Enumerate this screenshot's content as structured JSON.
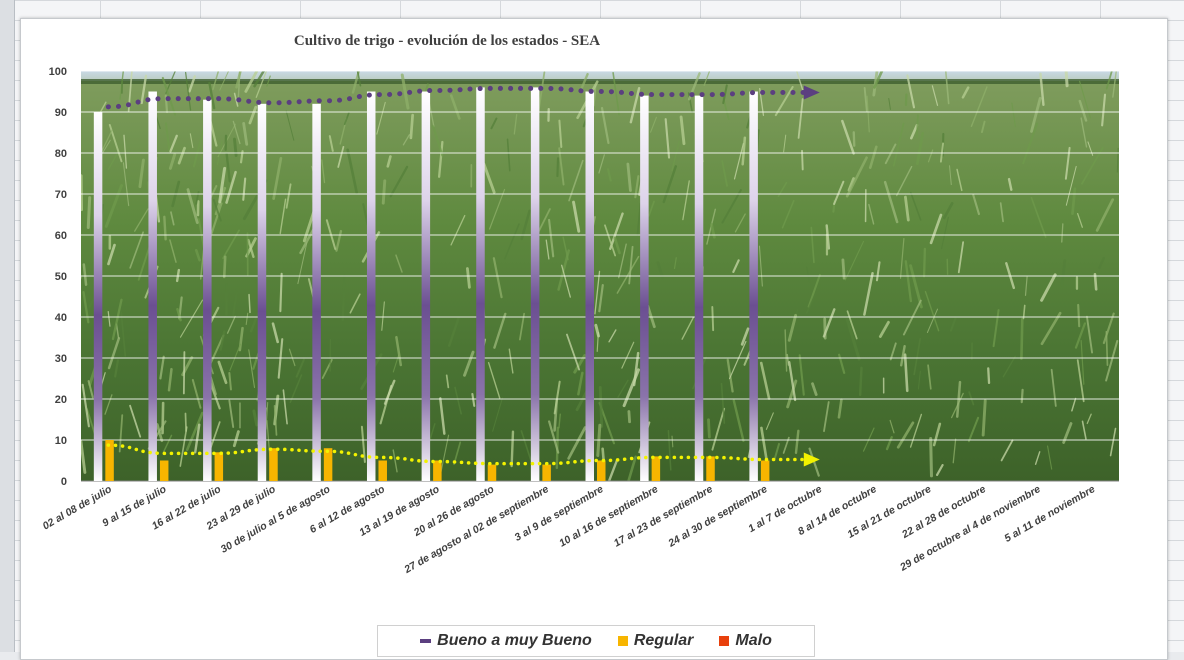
{
  "chart_data": {
    "type": "bar",
    "title": "Cultivo de trigo - evolución de los estados - SEA",
    "xlabel": "",
    "ylabel": "",
    "ylim": [
      0,
      100
    ],
    "yticks": [
      0,
      10,
      20,
      30,
      40,
      50,
      60,
      70,
      80,
      90,
      100
    ],
    "grid": true,
    "legend_position": "bottom",
    "categories": [
      "02 al 08 de julio",
      "9 al 15 de julio",
      "16 al 22 de julio",
      "23 al 29 de julio",
      "30 de julio al 5 de agosto",
      "6 al 12 de agosto",
      "13 al 19 de agosto",
      "20 al 26 de agosto",
      "27 de agosto al 02 de septiembre",
      "3 al 9 de septiembre",
      "10 al 16 de septiembre",
      "17 al 23 de septiembre",
      "24 al 30 de septiembre",
      "1 al 7 de octubre",
      "8 al 14 de octubre",
      "15 al 21 de octubre",
      "22 al 28 de octubre",
      "29 de octubre al 4 de noviembre",
      "5 al 11 de noviembre"
    ],
    "series": [
      {
        "name": "Bueno a muy Bueno",
        "color": "#5b3f80",
        "values": [
          90,
          95,
          93,
          92,
          92,
          95,
          95,
          96,
          96,
          95,
          94,
          94,
          95,
          null,
          null,
          null,
          null,
          null,
          null
        ]
      },
      {
        "name": "Regular",
        "color": "#f7b500",
        "values": [
          10,
          5,
          7,
          8,
          8,
          5,
          5,
          4,
          4,
          5,
          6,
          6,
          5,
          null,
          null,
          null,
          null,
          null,
          null
        ]
      },
      {
        "name": "Malo",
        "color": "#e8400c",
        "values": [
          0,
          0,
          0,
          0,
          0,
          0,
          0,
          0,
          0,
          0,
          0,
          0,
          0,
          null,
          null,
          null,
          null,
          null,
          null
        ]
      }
    ],
    "trendlines": [
      {
        "series": "Bueno a muy Bueno",
        "color": "#5b3f80",
        "style": "dotted-arrow"
      },
      {
        "series": "Regular",
        "color": "#f2f200",
        "style": "dotted-arrow"
      }
    ],
    "background": "wheat-field-photo"
  }
}
